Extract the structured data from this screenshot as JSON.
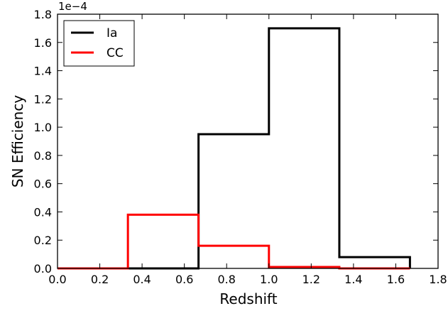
{
  "chart_data": {
    "type": "line",
    "drawstyle": "steps-post",
    "xlabel": "Redshift",
    "ylabel": "SN Efficiency",
    "y_offset_text": "1e−4",
    "xlim": [
      0.0,
      1.8
    ],
    "ylim": [
      0.0,
      1.8
    ],
    "xticks": [
      "0.0",
      "0.2",
      "0.4",
      "0.6",
      "0.8",
      "1.0",
      "1.2",
      "1.4",
      "1.6",
      "1.8"
    ],
    "yticks": [
      "0.0",
      "0.2",
      "0.4",
      "0.6",
      "0.8",
      "1.0",
      "1.2",
      "1.4",
      "1.6",
      "1.8"
    ],
    "legend_position": "top-left",
    "grid": false,
    "series": [
      {
        "name": "Ia",
        "color": "#000000",
        "x": [
          0.0,
          0.333,
          0.667,
          1.0,
          1.333,
          1.667
        ],
        "y": [
          0.0,
          0.0,
          0.95,
          1.7,
          0.08,
          0.0
        ]
      },
      {
        "name": "CC",
        "color": "#ff0000",
        "x": [
          0.0,
          0.333,
          0.667,
          1.0,
          1.333,
          1.667
        ],
        "y": [
          0.0,
          0.38,
          0.16,
          0.01,
          0.0,
          0.0
        ]
      }
    ]
  }
}
